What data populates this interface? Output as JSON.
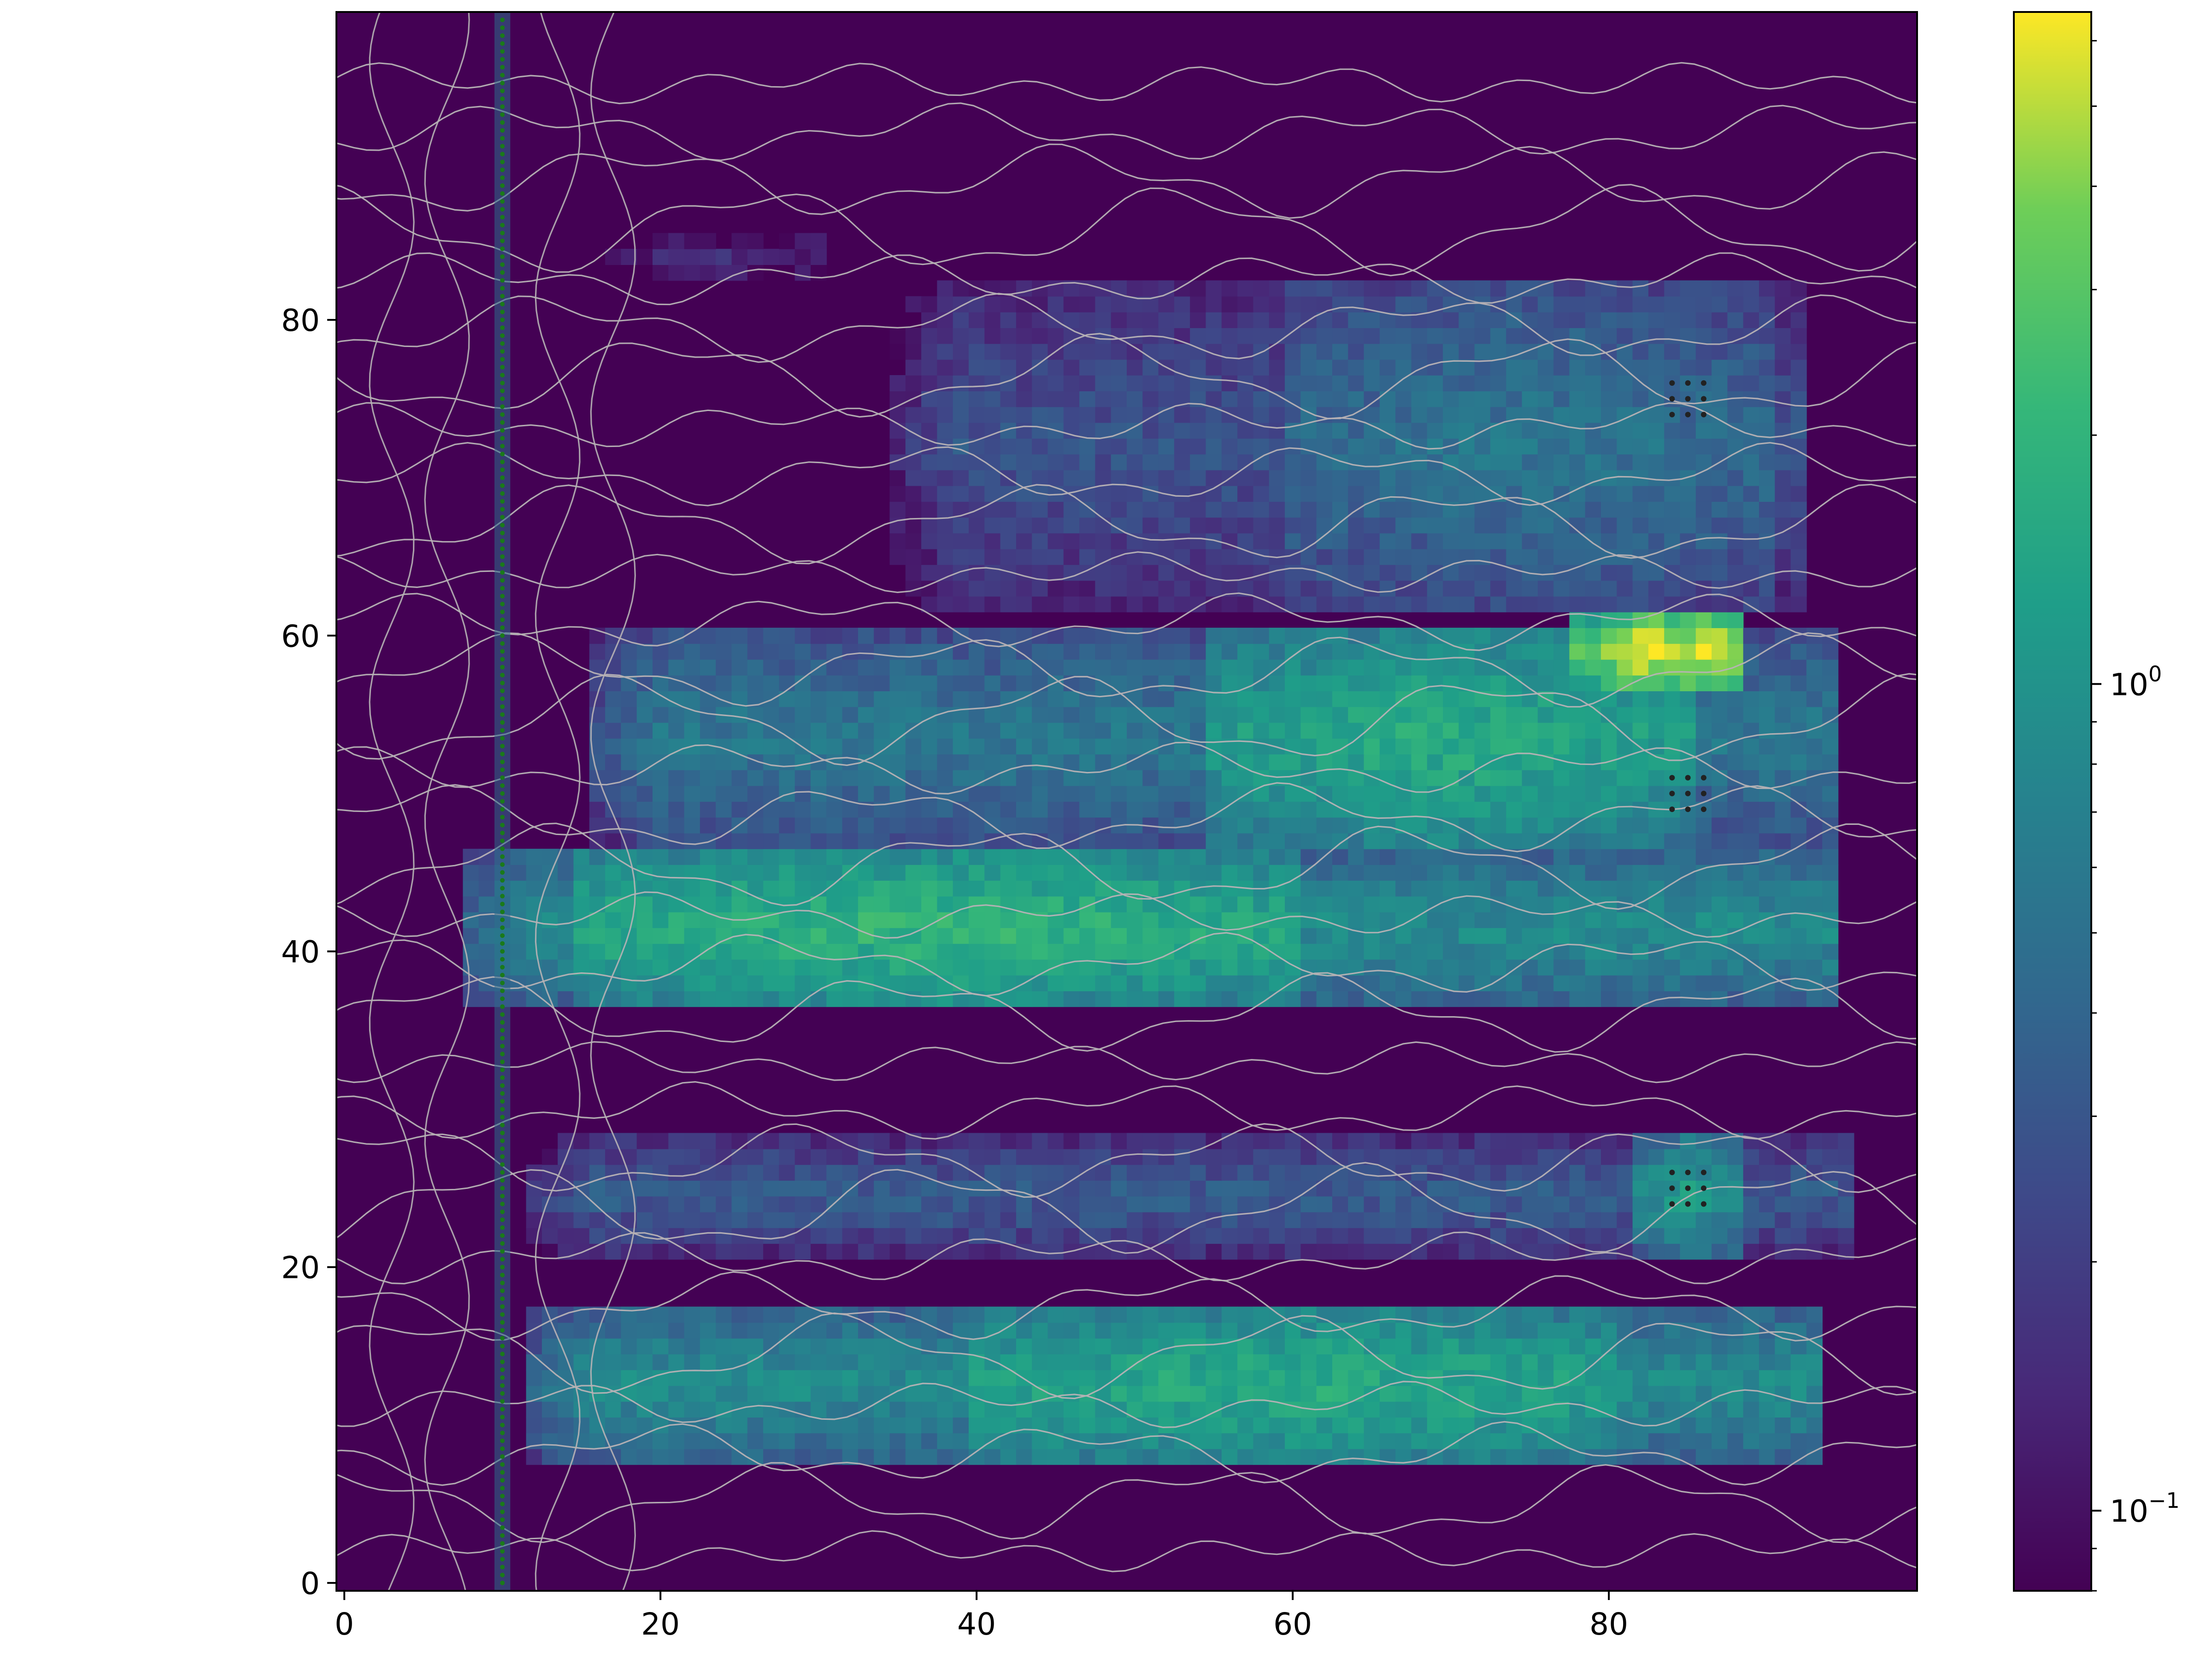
{
  "chart_data": {
    "type": "heatmap",
    "title": "",
    "xlabel": "",
    "ylabel": "",
    "xlim": [
      0,
      99
    ],
    "ylim": [
      0,
      99
    ],
    "x_ticks": [
      0,
      20,
      40,
      60,
      80
    ],
    "y_ticks": [
      0,
      20,
      40,
      60,
      80
    ],
    "colormap": "viridis",
    "color_scale": "log",
    "color_range": [
      0.08,
      6.5
    ],
    "colorbar": {
      "scale": "log",
      "tick_labels": [
        {
          "value": 0.1,
          "base": "10",
          "exponent": "−1"
        },
        {
          "value": 1,
          "base": "10",
          "exponent": "0"
        }
      ]
    },
    "background_value": 0.08,
    "bands": [
      {
        "y": [
          8,
          17
        ],
        "x": [
          12,
          93
        ],
        "value": 0.9,
        "peak_x": [
          40,
          80
        ],
        "peak_value": 1.8
      },
      {
        "y": [
          21,
          28
        ],
        "x": [
          12,
          95
        ],
        "value": 0.35,
        "peak_x": [
          82,
          88
        ],
        "peak_value": 1.3
      },
      {
        "y": [
          37,
          46
        ],
        "x": [
          8,
          94
        ],
        "value": 0.9,
        "peak_x": [
          15,
          60
        ],
        "peak_value": 2.2
      },
      {
        "y": [
          47,
          60
        ],
        "x": [
          16,
          94
        ],
        "value": 0.6,
        "peak_x": [
          55,
          85
        ],
        "peak_value": 1.8
      },
      {
        "y": [
          57,
          61
        ],
        "x": [
          78,
          88
        ],
        "value": 5.5,
        "peak_x": [
          80,
          86
        ],
        "peak_value": 6.5
      },
      {
        "y": [
          62,
          82
        ],
        "x": [
          35,
          92
        ],
        "value": 0.3,
        "peak_x": [
          60,
          90
        ],
        "peak_value": 0.6
      },
      {
        "y": [
          82,
          86
        ],
        "x": [
          16,
          30
        ],
        "value": 0.12,
        "peak_x": [
          16,
          30
        ],
        "peak_value": 0.15
      }
    ],
    "markers": {
      "vertical_dotted_line": {
        "x": 10,
        "y": [
          0,
          99
        ],
        "color": "#1a7a1a"
      },
      "dot_grids": [
        {
          "center": [
            85,
            75
          ],
          "color": "#222222"
        },
        {
          "center": [
            85,
            50
          ],
          "color": "#222222"
        },
        {
          "center": [
            85,
            25
          ],
          "color": "#222222"
        }
      ]
    },
    "contour_color": "#b7b2b5",
    "grid": false,
    "legend": "none"
  },
  "colors": {
    "viridis_dark": "#440154",
    "viridis_blue": "#3b528b",
    "viridis_teal": "#21918c",
    "viridis_green": "#5ec962",
    "viridis_yellow": "#fde725"
  }
}
